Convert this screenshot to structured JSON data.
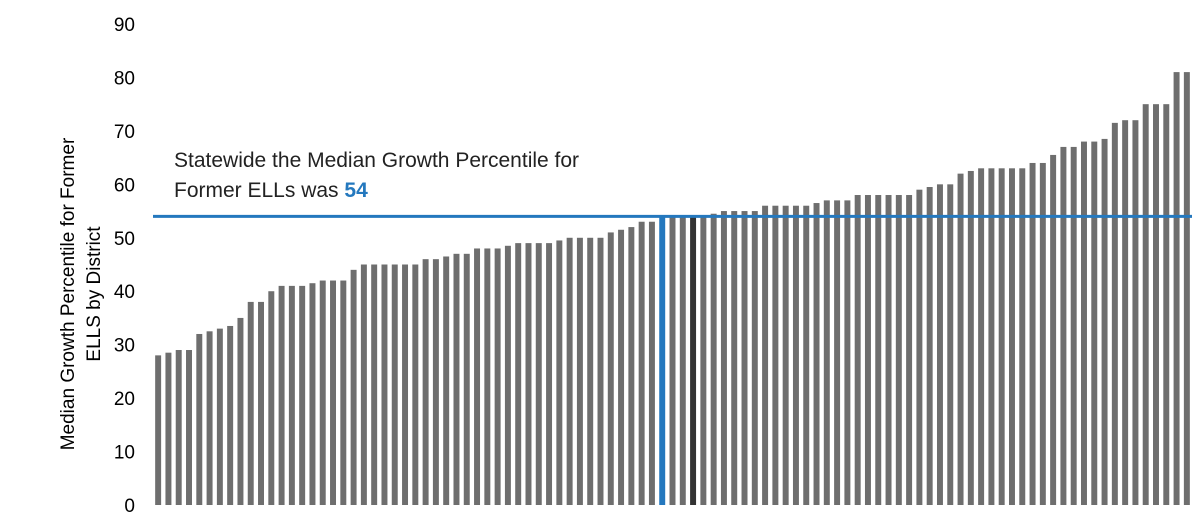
{
  "chart_data": {
    "type": "bar",
    "ylabel_line1": "Median Growth Percentile for Former",
    "ylabel_line2": "ELLS by District",
    "ylim": [
      0,
      90
    ],
    "yticks": [
      0,
      10,
      20,
      30,
      40,
      50,
      60,
      70,
      80,
      90
    ],
    "grid": false,
    "reference_line": {
      "value": 54,
      "color": "#2478be"
    },
    "highlight_bar_index": 49,
    "highlight_color": "#2478be",
    "bar_color": "#6e6e6e",
    "dark_bar_index": 52,
    "dark_bar_color": "#333333",
    "values": [
      28,
      28.5,
      29,
      29,
      32,
      32.5,
      33,
      33.5,
      35,
      38,
      38,
      40,
      41,
      41,
      41,
      41.5,
      42,
      42,
      42,
      44,
      45,
      45,
      45,
      45,
      45,
      45,
      46,
      46,
      46.5,
      47,
      47,
      48,
      48,
      48,
      48.5,
      49,
      49,
      49,
      49,
      49.5,
      50,
      50,
      50,
      50,
      51,
      51.5,
      52,
      53,
      53,
      54,
      54,
      54,
      54,
      54,
      54.5,
      55,
      55,
      55,
      55,
      56,
      56,
      56,
      56,
      56,
      56.5,
      57,
      57,
      57,
      58,
      58,
      58,
      58,
      58,
      58,
      59,
      59.5,
      60,
      60,
      62,
      62.5,
      63,
      63,
      63,
      63,
      63,
      64,
      64,
      65.5,
      67,
      67,
      68,
      68,
      68.5,
      71.5,
      72,
      72,
      75,
      75,
      75,
      81,
      81
    ]
  },
  "annotation": {
    "line1": "Statewide the Median Growth Percentile for",
    "line2_prefix": "Former ELLs was ",
    "value": "54"
  }
}
